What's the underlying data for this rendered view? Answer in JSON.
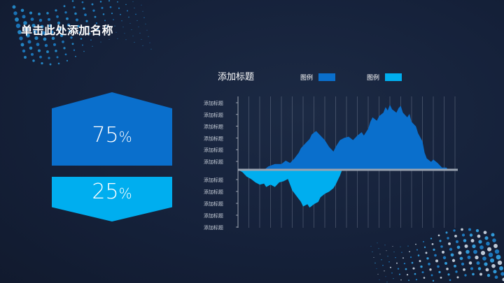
{
  "slide": {
    "title": "单击此处添加名称"
  },
  "stats": [
    {
      "value": "75",
      "unit": "%",
      "color": "#0a6fcc"
    },
    {
      "value": "25",
      "unit": "%",
      "color": "#00aeef"
    }
  ],
  "legend": [
    {
      "label": "图例",
      "color": "#0a6fcc"
    },
    {
      "label": "图例",
      "color": "#00aeef"
    }
  ],
  "chart_data": {
    "type": "area",
    "title": "添加标题",
    "y_labels_upper": [
      "添加标题",
      "添加标题",
      "添加标题",
      "添加标题",
      "添加标题",
      "添加标题"
    ],
    "y_labels_lower": [
      "添加标题",
      "添加标题",
      "添加标题",
      "添加标题",
      "添加标题"
    ],
    "xlim": [
      0,
      100
    ],
    "upper_ylim": [
      0,
      6
    ],
    "lower_ylim": [
      0,
      5
    ],
    "series": [
      {
        "color": "#0a6fcc",
        "points": [
          [
            0,
            0
          ],
          [
            12,
            0
          ],
          [
            14,
            0.3
          ],
          [
            17,
            0.5
          ],
          [
            20,
            0.5
          ],
          [
            22,
            0.8
          ],
          [
            24,
            0.6
          ],
          [
            26,
            1.0
          ],
          [
            28,
            1.5
          ],
          [
            29,
            1.9
          ],
          [
            31,
            2.3
          ],
          [
            33,
            2.7
          ],
          [
            34,
            3.1
          ],
          [
            36,
            3.4
          ],
          [
            38,
            3.0
          ],
          [
            40,
            2.6
          ],
          [
            42,
            2.0
          ],
          [
            44,
            1.6
          ],
          [
            45,
            2.0
          ],
          [
            47,
            2.6
          ],
          [
            49,
            2.8
          ],
          [
            51,
            2.9
          ],
          [
            53,
            2.6
          ],
          [
            55,
            3.0
          ],
          [
            57,
            3.3
          ],
          [
            58,
            3.0
          ],
          [
            60,
            3.6
          ],
          [
            61,
            4.2
          ],
          [
            62,
            4.6
          ],
          [
            64,
            4.3
          ],
          [
            65,
            4.7
          ],
          [
            67,
            5.0
          ],
          [
            68,
            5.5
          ],
          [
            69,
            5.2
          ],
          [
            70,
            5.7
          ],
          [
            71,
            5.3
          ],
          [
            73,
            5.0
          ],
          [
            74,
            5.4
          ],
          [
            75,
            5.6
          ],
          [
            76,
            5.0
          ],
          [
            78,
            4.6
          ],
          [
            79,
            4.9
          ],
          [
            80,
            4.2
          ],
          [
            82,
            3.8
          ],
          [
            83,
            3.2
          ],
          [
            85,
            2.5
          ],
          [
            86,
            1.5
          ],
          [
            87,
            1.0
          ],
          [
            89,
            0.7
          ],
          [
            90,
            0.9
          ],
          [
            92,
            0.6
          ],
          [
            94,
            0.2
          ],
          [
            96,
            0.2
          ],
          [
            97,
            0
          ]
        ]
      },
      {
        "color": "#00aeef",
        "points": [
          [
            0,
            0
          ],
          [
            2,
            0.2
          ],
          [
            4,
            0.6
          ],
          [
            6,
            0.8
          ],
          [
            8,
            1.1
          ],
          [
            10,
            1.3
          ],
          [
            12,
            1.2
          ],
          [
            13,
            1.5
          ],
          [
            15,
            1.3
          ],
          [
            17,
            1.5
          ],
          [
            19,
            1.1
          ],
          [
            21,
            1.0
          ],
          [
            23,
            0.8
          ],
          [
            24,
            1.3
          ],
          [
            25,
            1.8
          ],
          [
            27,
            2.3
          ],
          [
            29,
            2.8
          ],
          [
            30,
            3.2
          ],
          [
            32,
            3.0
          ],
          [
            33,
            3.3
          ],
          [
            35,
            3.0
          ],
          [
            37,
            2.8
          ],
          [
            38,
            2.4
          ],
          [
            40,
            2.1
          ],
          [
            42,
            1.9
          ],
          [
            44,
            1.6
          ],
          [
            45,
            1.3
          ],
          [
            46,
            0.9
          ],
          [
            47,
            0.5
          ],
          [
            48,
            0
          ]
        ]
      }
    ]
  }
}
